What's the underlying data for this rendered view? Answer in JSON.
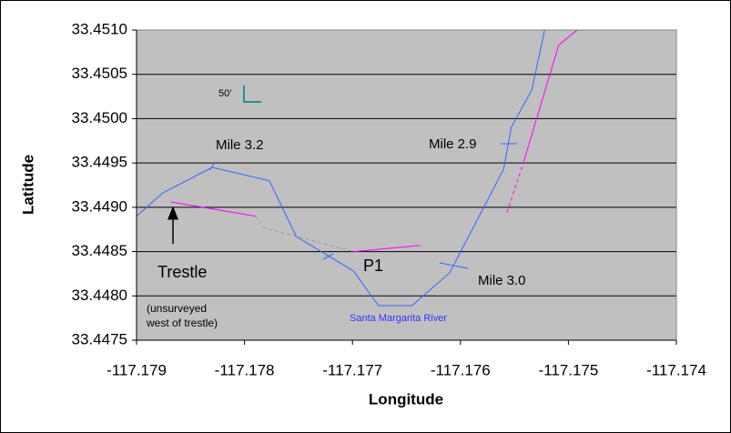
{
  "chart_data": {
    "type": "line",
    "x_label": "Longitude",
    "y_label": "Latitude",
    "xlim": [
      -117.179,
      -117.174
    ],
    "xticks": [
      -117.179,
      -117.178,
      -117.177,
      -117.176,
      -117.175,
      -117.174
    ],
    "ylim": [
      33.4475,
      33.451
    ],
    "yticks": [
      33.4475,
      {
        "value": 33.448,
        "label": "33.4480"
      },
      33.4485,
      {
        "value": 33.449,
        "label": "33.4490"
      },
      33.4495,
      {
        "value": 33.45,
        "label": "33.4500"
      },
      33.4505,
      {
        "value": 33.451,
        "label": "33.4510"
      }
    ],
    "grid": true,
    "series": [
      {
        "color": "#3366ff",
        "dash": false,
        "x": [
          -117.179,
          -117.17876,
          -117.1783,
          -117.17777,
          -117.17752,
          -117.17699,
          -117.17676,
          -117.17645,
          -117.1761,
          -117.1756,
          -117.17553,
          -117.17534,
          -117.17522
        ],
        "y": [
          33.4489,
          33.44916,
          33.44945,
          33.4493,
          33.44867,
          33.44828,
          33.44789,
          33.44789,
          33.44826,
          33.44943,
          33.4499,
          33.45032,
          33.451
        ]
      },
      {
        "color": "#ff00ff",
        "dash": false,
        "x": [
          -117.17868,
          -117.1779
        ],
        "y": [
          33.44906,
          33.4489
        ]
      },
      {
        "color": "#999999",
        "dash": true,
        "x": [
          -117.1779,
          -117.17782,
          -117.17699
        ],
        "y": [
          33.4489,
          33.44877,
          33.4485
        ]
      },
      {
        "color": "#ff00ff",
        "dash": false,
        "x": [
          -117.17699,
          -117.17637
        ],
        "y": [
          33.4485,
          33.44857
        ]
      },
      {
        "color": "#ff00ff",
        "dash": true,
        "x": [
          -117.17557,
          -117.17542
        ],
        "y": [
          33.44894,
          33.44949
        ]
      },
      {
        "color": "#ff00ff",
        "dash": false,
        "x": [
          -117.17542,
          -117.17509,
          -117.17492
        ],
        "y": [
          33.44949,
          33.45083,
          33.451
        ]
      }
    ],
    "annotations": [
      "Mile 3.2",
      "Mile 2.9",
      "Mile 3.0",
      "P1",
      "Trestle",
      "(unsurveyed",
      "west of trestle)",
      "Santa Margarita River",
      "50'"
    ]
  }
}
